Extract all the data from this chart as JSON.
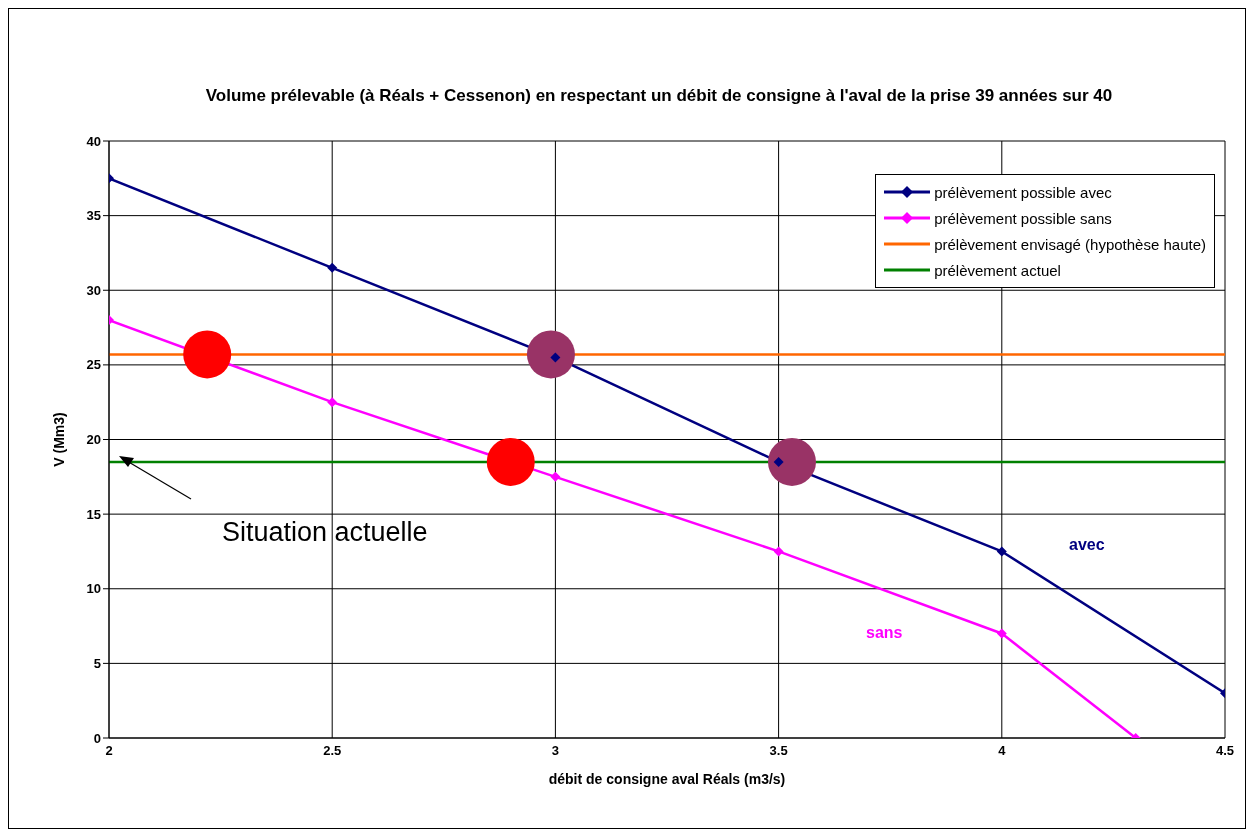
{
  "chart_data": {
    "type": "line",
    "title": "Volume prélevable (à Réals + Cessenon) en respectant un débit de consigne à l'aval de la prise 39 années sur 40",
    "xlabel": "débit de consigne aval Réals (m3/s)",
    "ylabel": "V (Mm3)",
    "xlim": [
      2,
      4.5
    ],
    "xticks": [
      2,
      2.5,
      3,
      3.5,
      4,
      4.5
    ],
    "ylim": [
      0,
      40
    ],
    "yticks": [
      0,
      5,
      10,
      15,
      20,
      25,
      30,
      35,
      40
    ],
    "grid": true,
    "legend": "top right",
    "line_style": "solid",
    "series": [
      {
        "name": "prélèvement possible avec",
        "color": "#000080",
        "marker": "diamond",
        "x": [
          2,
          2.5,
          3,
          3.5,
          4,
          4.5
        ],
        "values": [
          37.5,
          31.5,
          25.5,
          18.5,
          12.5,
          3
        ]
      },
      {
        "name": "prélèvement possible sans",
        "color": "#ff00ff",
        "marker": "diamond",
        "x": [
          2,
          2.5,
          3,
          3.5,
          4,
          4.3
        ],
        "values": [
          28,
          22.5,
          17.5,
          12.5,
          7,
          0
        ]
      },
      {
        "name": "prélèvement envisagé (hypothèse haute)",
        "color": "#ff6600",
        "marker": "none",
        "x": [
          2,
          4.5
        ],
        "values": [
          25.7,
          25.7
        ]
      },
      {
        "name": "prélèvement actuel",
        "color": "#008000",
        "marker": "none",
        "x": [
          2,
          4.5
        ],
        "values": [
          18.5,
          18.5
        ]
      },
      {
        "type": "scatter",
        "color": "#ff0000",
        "marker": "circle",
        "x": [
          2.22,
          2.9
        ],
        "values": [
          25.7,
          18.5
        ]
      },
      {
        "type": "scatter",
        "color": "#993366",
        "marker": "circle",
        "x": [
          2.99,
          3.53
        ],
        "values": [
          25.7,
          18.5
        ]
      }
    ],
    "annotations": [
      "Situation actuelle",
      "avec",
      "sans"
    ]
  }
}
